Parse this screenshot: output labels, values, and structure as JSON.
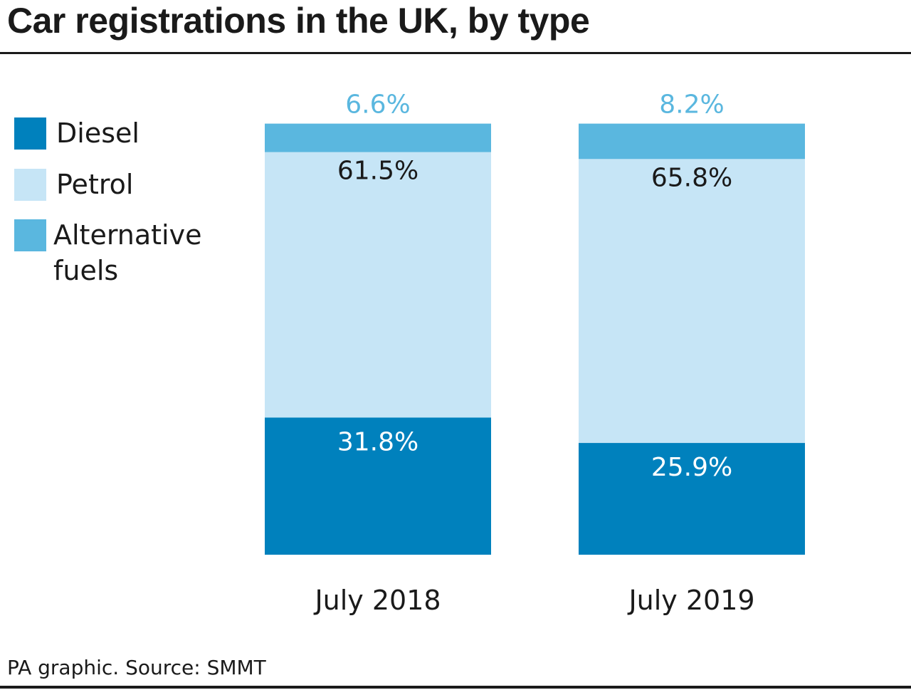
{
  "title": "Car registrations in the UK, by type",
  "source": "PA graphic. Source: SMMT",
  "colors": {
    "diesel": "#0081bd",
    "petrol": "#c6e5f6",
    "alternative": "#5ab7df",
    "text": "#1a1a1a"
  },
  "chart_data": {
    "type": "bar",
    "stacked": true,
    "title": "Car registrations in the UK, by type",
    "categories": [
      "July 2018",
      "July 2019"
    ],
    "series": [
      {
        "name": "Diesel",
        "values": [
          31.8,
          25.9
        ],
        "labels": [
          "31.8%",
          "25.9%"
        ],
        "color": "#0081bd"
      },
      {
        "name": "Petrol",
        "values": [
          61.5,
          65.8
        ],
        "labels": [
          "61.5%",
          "65.8%"
        ],
        "color": "#c6e5f6"
      },
      {
        "name": "Alternative fuels",
        "values": [
          6.6,
          8.2
        ],
        "labels": [
          "6.6%",
          "8.2%"
        ],
        "color": "#5ab7df"
      }
    ],
    "ylim": [
      0,
      100
    ],
    "grid": false,
    "legend_position": "left"
  },
  "legend": [
    {
      "label": "Diesel",
      "color": "#0081bd"
    },
    {
      "label": "Petrol",
      "color": "#c6e5f6"
    },
    {
      "label": "Alternative fuels",
      "color": "#5ab7df"
    }
  ]
}
